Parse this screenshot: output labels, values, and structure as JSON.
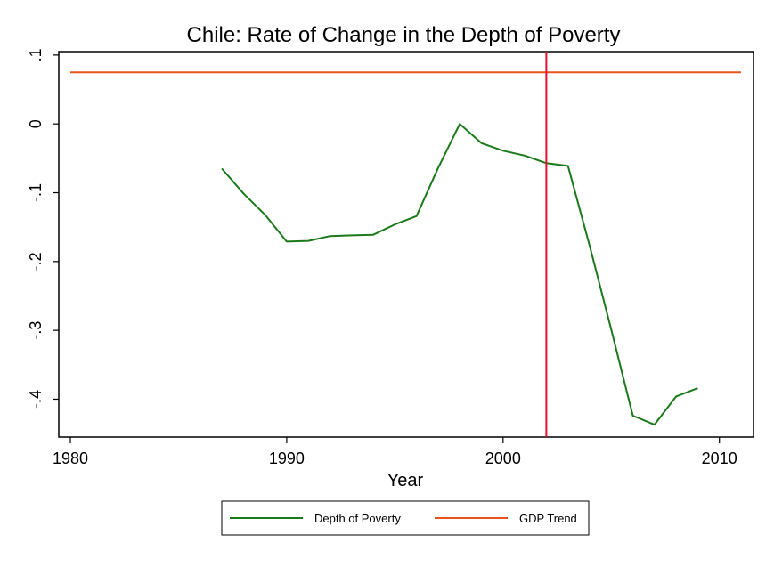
{
  "chart_data": {
    "type": "line",
    "title": "Chile: Rate of Change in the Depth of Poverty",
    "xlabel": "Year",
    "ylabel": "",
    "xlim": [
      1980,
      2011
    ],
    "ylim": [
      -0.455,
      0.105
    ],
    "x_ticks": [
      1980,
      1990,
      2000,
      2010
    ],
    "y_ticks": [
      {
        "value": 0.1,
        "label": ".1"
      },
      {
        "value": 0,
        "label": "0"
      },
      {
        "value": -0.1,
        "label": "-.1"
      },
      {
        "value": -0.2,
        "label": "-.2"
      },
      {
        "value": -0.3,
        "label": "-.3"
      },
      {
        "value": -0.4,
        "label": "-.4"
      }
    ],
    "grid": false,
    "legend_position": "bottom",
    "series": [
      {
        "name": "Depth of Poverty",
        "color": "#1a7a1a",
        "x": [
          1987,
          1988,
          1989,
          1990,
          1991,
          1992,
          1993,
          1994,
          1995,
          1996,
          1997,
          1998,
          1999,
          2000,
          2001,
          2002,
          2003,
          2004,
          2005,
          2006,
          2007,
          2008,
          2009
        ],
        "y": [
          -0.065,
          -0.101,
          -0.132,
          -0.171,
          -0.17,
          -0.163,
          -0.162,
          -0.161,
          -0.146,
          -0.134,
          -0.064,
          0.0,
          -0.028,
          -0.039,
          -0.046,
          -0.057,
          -0.061,
          -0.177,
          -0.299,
          -0.424,
          -0.437,
          -0.396,
          -0.384
        ]
      },
      {
        "name": "GDP Trend",
        "color": "#e8541c",
        "x": [
          1980,
          2011
        ],
        "y": [
          0.075,
          0.075
        ]
      }
    ],
    "reference_line": {
      "axis": "x",
      "value": 2002,
      "color": "#e0102e"
    }
  }
}
